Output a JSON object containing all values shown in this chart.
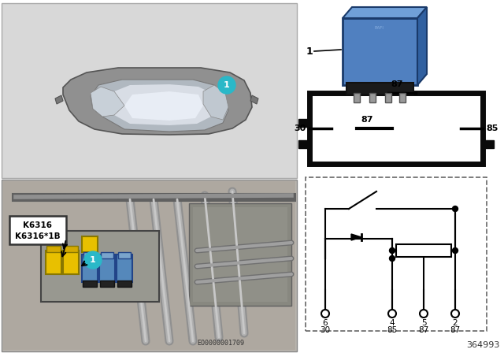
{
  "bg_color": "#ffffff",
  "panel_left_bg": "#d4d4d4",
  "car_panel_bg": "#d8d8d8",
  "engine_panel_bg": "#c0b8b0",
  "teal_color": "#2ab8c8",
  "yellow_color": "#e8c000",
  "blue_relay_color": "#5588bb",
  "title_number": "364993",
  "eo_code": "EO0000001709",
  "label_k6316": "K6316",
  "label_k6316_1b": "K6316*1B",
  "car_body_color": "#888888",
  "car_roof_color": "#e0e8f0",
  "car_outline_color": "#555555",
  "sym_box_color": "#111111",
  "dashed_box_color": "#666666",
  "relay_blue_main": "#5080c0",
  "relay_blue_light": "#70a0d8",
  "relay_blue_dark": "#3060a0",
  "relay_black": "#1a1a1a",
  "pin_labels": [
    "6",
    "4",
    "5",
    "2"
  ],
  "func_labels": [
    "30",
    "85",
    "87",
    "87"
  ],
  "relay_sym_labels": [
    "87",
    "30",
    "87",
    "85"
  ]
}
